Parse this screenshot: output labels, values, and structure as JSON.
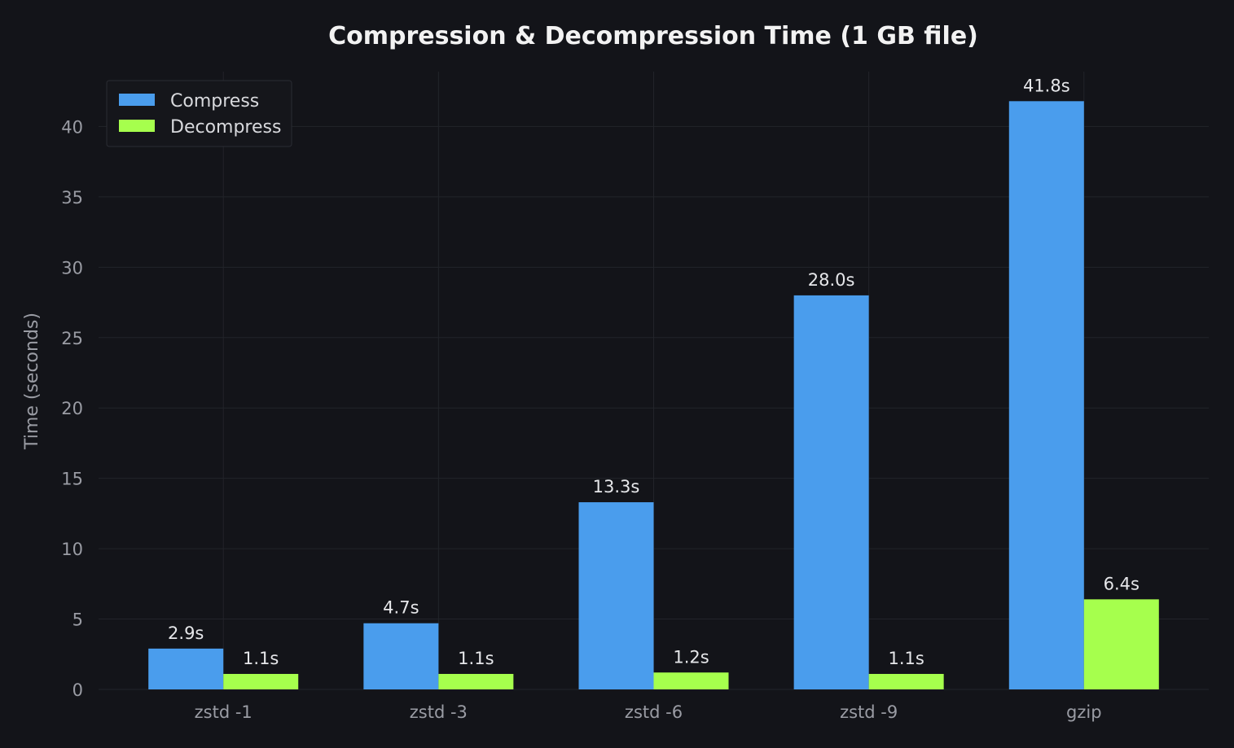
{
  "chart_data": {
    "type": "bar",
    "title": "Compression & Decompression Time (1 GB file)",
    "xlabel": "",
    "ylabel": "Time (seconds)",
    "categories": [
      "zstd -1",
      "zstd -3",
      "zstd -6",
      "zstd -9",
      "gzip"
    ],
    "series": [
      {
        "name": "Compress",
        "color": "#4a9ded",
        "values": [
          2.9,
          4.7,
          13.3,
          28.0,
          41.8
        ],
        "labels": [
          "2.9s",
          "4.7s",
          "13.3s",
          "28.0s",
          "41.8s"
        ]
      },
      {
        "name": "Decompress",
        "color": "#a6ff4d",
        "values": [
          1.1,
          1.1,
          1.2,
          1.1,
          6.4
        ],
        "labels": [
          "1.1s",
          "1.1s",
          "1.2s",
          "1.1s",
          "6.4s"
        ]
      }
    ],
    "ylim": [
      0,
      43.9
    ],
    "yticks": [
      0,
      5,
      10,
      15,
      20,
      25,
      30,
      35,
      40
    ],
    "grid": true,
    "legend_position": "top-left",
    "background": "#131419"
  }
}
